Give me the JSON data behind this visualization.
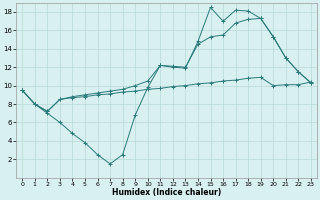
{
  "xlabel": "Humidex (Indice chaleur)",
  "background_color": "#d8f0f0",
  "line_color": "#2a7a7a",
  "grid_color": "#b8d8d8",
  "xlim": [
    -0.5,
    23.5
  ],
  "ylim": [
    0,
    19
  ],
  "xticks": [
    0,
    1,
    2,
    3,
    4,
    5,
    6,
    7,
    8,
    9,
    10,
    11,
    12,
    13,
    14,
    15,
    16,
    17,
    18,
    19,
    20,
    21,
    22,
    23
  ],
  "yticks": [
    2,
    4,
    6,
    8,
    10,
    12,
    14,
    16,
    18
  ],
  "line1_x": [
    0,
    1,
    2,
    3,
    4,
    5,
    6,
    7,
    8,
    9,
    10,
    11,
    12,
    13,
    14,
    15,
    16,
    17,
    18,
    19,
    20,
    21,
    22,
    23
  ],
  "line1_y": [
    9.5,
    8.0,
    7.0,
    6.0,
    4.8,
    3.8,
    2.5,
    1.5,
    2.5,
    6.8,
    9.8,
    12.2,
    12.0,
    11.9,
    14.8,
    18.5,
    17.0,
    18.2,
    18.1,
    17.3,
    15.3,
    13.0,
    11.5,
    10.3
  ],
  "line2_x": [
    0,
    1,
    2,
    3,
    4,
    5,
    6,
    7,
    8,
    9,
    10,
    11,
    12,
    13,
    14,
    15,
    16,
    17,
    18,
    19,
    20,
    21,
    22,
    23
  ],
  "line2_y": [
    9.5,
    8.0,
    7.2,
    8.5,
    8.7,
    8.8,
    9.0,
    9.1,
    9.3,
    9.4,
    9.6,
    9.7,
    9.9,
    10.0,
    10.2,
    10.3,
    10.5,
    10.6,
    10.8,
    10.9,
    10.0,
    10.1,
    10.1,
    10.4
  ],
  "line3_x": [
    0,
    1,
    2,
    3,
    4,
    5,
    6,
    7,
    8,
    9,
    10,
    11,
    12,
    13,
    14,
    15,
    16,
    17,
    18,
    19,
    20,
    21,
    22,
    23
  ],
  "line3_y": [
    9.5,
    8.0,
    7.2,
    8.5,
    8.8,
    9.0,
    9.2,
    9.4,
    9.6,
    10.0,
    10.5,
    12.2,
    12.1,
    12.0,
    14.5,
    15.3,
    15.5,
    16.8,
    17.2,
    17.3,
    15.3,
    13.0,
    11.5,
    10.3
  ]
}
